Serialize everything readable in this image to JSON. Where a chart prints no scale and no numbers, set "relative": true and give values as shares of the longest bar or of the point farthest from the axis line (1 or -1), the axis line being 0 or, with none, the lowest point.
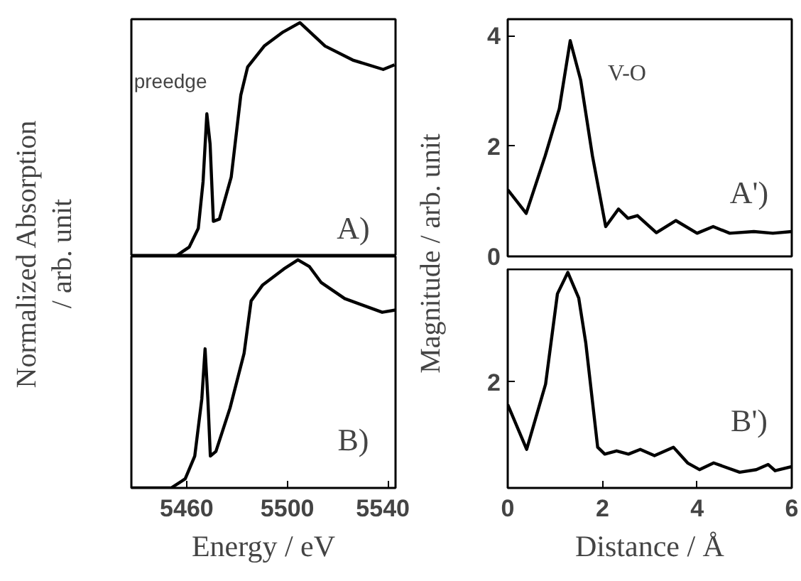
{
  "chart_data": [
    {
      "type": "line",
      "relative": true,
      "ylabel": "Normalized Absorption\n/ arb. unit",
      "xlim": [
        5438,
        5543
      ],
      "xticks": [
        5460,
        5500,
        5540
      ],
      "tick_labels": false,
      "color": "#000000",
      "x": [
        5438,
        5455.5,
        5461,
        5464.6,
        5466.5,
        5468,
        5469.3,
        5470.6,
        5473,
        5477.7,
        5481.5,
        5484.2,
        5490.8,
        5498.3,
        5505,
        5515,
        5526,
        5538.1,
        5542.6
      ],
      "values": [
        0,
        0,
        0.04,
        0.12,
        0.32,
        0.61,
        0.48,
        0.15,
        0.16,
        0.34,
        0.69,
        0.81,
        0.9,
        0.96,
        1,
        0.9,
        0.84,
        0.8,
        0.82
      ],
      "annotations": [
        "preedge",
        "A)"
      ]
    },
    {
      "type": "line",
      "ylabel": "Magnitude / arb. unit",
      "xlim": [
        0,
        6
      ],
      "xticks": [
        0,
        2,
        4,
        6
      ],
      "ylim": [
        0,
        4.3
      ],
      "yticks": [
        0,
        2,
        4
      ],
      "tick_labels": "y",
      "color": "#000000",
      "x": [
        0,
        0.39,
        0.79,
        1.09,
        1.32,
        1.54,
        1.79,
        2.07,
        2.34,
        2.54,
        2.74,
        3.14,
        3.55,
        4.0,
        4.34,
        4.69,
        5.2,
        5.6,
        6.0
      ],
      "values": [
        1.21,
        0.78,
        1.82,
        2.68,
        3.91,
        3.2,
        1.82,
        0.54,
        0.86,
        0.69,
        0.74,
        0.43,
        0.65,
        0.42,
        0.54,
        0.42,
        0.45,
        0.42,
        0.45
      ],
      "annotations": [
        "V-O",
        "A')"
      ]
    },
    {
      "type": "line",
      "relative": true,
      "xlabel": "Energy / eV",
      "xlim": [
        5438,
        5543
      ],
      "xticks": [
        5460,
        5500,
        5540
      ],
      "tick_labels": "x",
      "color": "#000000",
      "x": [
        5438,
        5453.8,
        5459.4,
        5463.2,
        5466,
        5467.3,
        5468.4,
        5469.4,
        5471.6,
        5477.2,
        5482.8,
        5485.6,
        5490.2,
        5498.6,
        5504.2,
        5508.8,
        5513.5,
        5522.8,
        5537.7,
        5543
      ],
      "values": [
        0,
        0,
        0.04,
        0.14,
        0.39,
        0.61,
        0.39,
        0.14,
        0.16,
        0.35,
        0.59,
        0.82,
        0.89,
        0.96,
        1,
        0.97,
        0.9,
        0.83,
        0.77,
        0.78
      ],
      "annotations": [
        "B)"
      ]
    },
    {
      "type": "line",
      "relative": true,
      "xlabel": "Distance / Å",
      "xlim": [
        0,
        6
      ],
      "xticks": [
        0,
        2,
        4,
        6
      ],
      "tick_labels": "x",
      "color": "#000000",
      "x": [
        0,
        0.4,
        0.8,
        1.05,
        1.27,
        1.5,
        1.65,
        1.9,
        2.05,
        2.3,
        2.55,
        2.8,
        3.1,
        3.5,
        3.8,
        4.05,
        4.35,
        4.9,
        5.25,
        5.5,
        5.65,
        6.0
      ],
      "values": [
        0.387,
        0.179,
        0.482,
        0.901,
        1,
        0.881,
        0.671,
        0.189,
        0.157,
        0.172,
        0.157,
        0.179,
        0.15,
        0.189,
        0.116,
        0.085,
        0.116,
        0.073,
        0.085,
        0.109,
        0.08,
        0.099
      ],
      "annotations": [
        "2",
        "B')"
      ]
    }
  ]
}
